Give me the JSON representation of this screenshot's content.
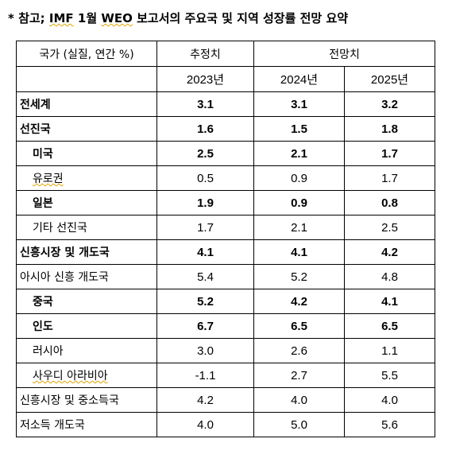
{
  "title": {
    "prefix": "* 참고; ",
    "imf": "IMF",
    "mid": " 1월 ",
    "weo": "WEO",
    "suffix": " 보고서의 주요국 및 지역 성장률 전망 요약"
  },
  "table": {
    "header": {
      "country_label": "국가 (실질, 연간 %)",
      "estimate_label": "추정치",
      "forecast_label": "전망치",
      "years": [
        "2023년",
        "2024년",
        "2025년"
      ]
    },
    "rows": [
      {
        "name": "전세계",
        "v2023": "3.1",
        "v2024": "3.1",
        "v2025": "3.2"
      },
      {
        "name": "선진국",
        "v2023": "1.6",
        "v2024": "1.5",
        "v2025": "1.8"
      },
      {
        "name": "미국",
        "v2023": "2.5",
        "v2024": "2.1",
        "v2025": "1.7"
      },
      {
        "name": "유로권",
        "v2023": "0.5",
        "v2024": "0.9",
        "v2025": "1.7"
      },
      {
        "name": "일본",
        "v2023": "1.9",
        "v2024": "0.9",
        "v2025": "0.8"
      },
      {
        "name": "기타 선진국",
        "v2023": "1.7",
        "v2024": "2.1",
        "v2025": "2.5"
      },
      {
        "name": "신흥시장 및 개도국",
        "v2023": "4.1",
        "v2024": "4.1",
        "v2025": "4.2"
      },
      {
        "name": "아시아 신흥 개도국",
        "v2023": "5.4",
        "v2024": "5.2",
        "v2025": "4.8"
      },
      {
        "name": "중국",
        "v2023": "5.2",
        "v2024": "4.2",
        "v2025": "4.1"
      },
      {
        "name": "인도",
        "v2023": "6.7",
        "v2024": "6.5",
        "v2025": "6.5"
      },
      {
        "name": "러시아",
        "v2023": "3.0",
        "v2024": "2.6",
        "v2025": "1.1"
      },
      {
        "name": "사우디 아라비아",
        "v2023": "-1.1",
        "v2024": "2.7",
        "v2025": "5.5"
      },
      {
        "name": "신흥시장 및 중소득국",
        "v2023": "4.2",
        "v2024": "4.0",
        "v2025": "4.0"
      },
      {
        "name": "저소득 개도국",
        "v2023": "4.0",
        "v2024": "5.0",
        "v2025": "5.6"
      }
    ]
  }
}
